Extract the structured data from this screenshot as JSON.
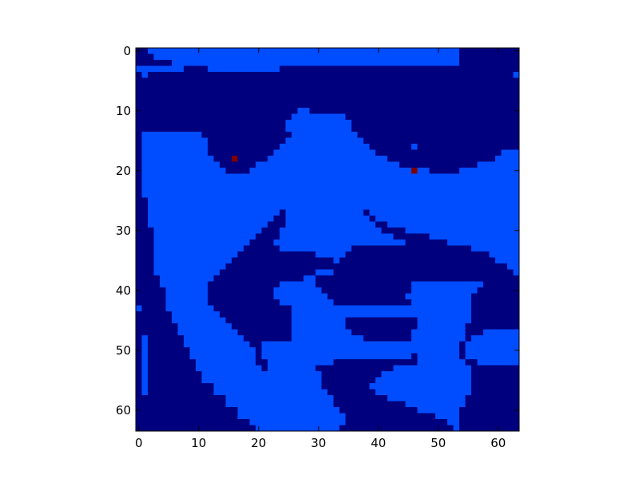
{
  "chart_data": {
    "type": "heatmap",
    "title": "",
    "xlabel": "",
    "ylabel": "",
    "xlim": [
      0,
      64
    ],
    "ylim": [
      64,
      0
    ],
    "grid": false,
    "legend": "none",
    "x_ticks": [
      0,
      10,
      20,
      30,
      40,
      50,
      60
    ],
    "y_ticks": [
      0,
      10,
      20,
      30,
      40,
      50,
      60
    ],
    "width": 64,
    "height": 64,
    "value_levels": [
      0,
      1,
      2
    ],
    "colors": {
      "0": "#00007f",
      "1": "#004cff",
      "2": "#7f0000",
      "axis": "#000000",
      "background": "#ffffff"
    },
    "regions": {
      "top_dark_band": {
        "rows": [
          0,
          1
        ],
        "value": 0
      },
      "left_dark_column": {
        "cols": [
          0,
          0
        ],
        "value": 0
      }
    },
    "hair_rows": [
      [
        0,
        1,
        54,
        64
      ],
      [
        1,
        1,
        47,
        64
      ],
      [
        2,
        4,
        40,
        64
      ],
      [
        3,
        2,
        36,
        64
      ],
      [
        4,
        1,
        34,
        64
      ],
      [
        5,
        2,
        32,
        64
      ],
      [
        6,
        3,
        30,
        64
      ],
      [
        7,
        4,
        28,
        64
      ],
      [
        8,
        5,
        27,
        64
      ],
      [
        9,
        5,
        24,
        64
      ],
      [
        10,
        4,
        26,
        64
      ],
      [
        11,
        4,
        27,
        64
      ],
      [
        12,
        4,
        28,
        64
      ],
      [
        13,
        4,
        27,
        64
      ]
    ],
    "brow_left": [
      [
        14,
        11,
        26
      ],
      [
        15,
        11,
        25
      ],
      [
        16,
        12,
        24
      ],
      [
        17,
        12,
        23
      ],
      [
        18,
        13,
        22
      ],
      [
        19,
        14,
        20
      ],
      [
        20,
        15,
        19
      ]
    ],
    "brow_right": [
      [
        13,
        36,
        64
      ],
      [
        14,
        37,
        64
      ],
      [
        15,
        38,
        64
      ],
      [
        16,
        39,
        64
      ],
      [
        17,
        40,
        61
      ],
      [
        18,
        42,
        60
      ],
      [
        19,
        44,
        57
      ],
      [
        20,
        49,
        54
      ]
    ],
    "nose_left": [
      [
        27,
        24,
        25
      ],
      [
        28,
        23,
        25
      ],
      [
        29,
        22,
        25
      ],
      [
        30,
        21,
        24
      ],
      [
        31,
        20,
        24
      ],
      [
        32,
        19,
        23
      ],
      [
        33,
        18,
        24
      ],
      [
        34,
        17,
        30
      ],
      [
        35,
        16,
        33
      ],
      [
        36,
        15,
        33
      ],
      [
        37,
        14,
        30
      ],
      [
        38,
        13,
        28
      ],
      [
        39,
        12,
        24
      ],
      [
        40,
        12,
        23
      ],
      [
        41,
        12,
        23
      ],
      [
        42,
        12,
        24
      ],
      [
        43,
        13,
        26
      ],
      [
        44,
        14,
        26
      ],
      [
        45,
        15,
        26
      ],
      [
        46,
        16,
        26
      ],
      [
        47,
        17,
        26
      ],
      [
        48,
        18,
        26
      ],
      [
        49,
        19,
        21
      ],
      [
        50,
        20,
        21
      ],
      [
        51,
        20,
        21
      ],
      [
        52,
        20,
        22
      ],
      [
        53,
        21,
        22
      ]
    ],
    "nose_right": [
      [
        27,
        38,
        39
      ],
      [
        28,
        39,
        40
      ],
      [
        29,
        40,
        42
      ],
      [
        30,
        41,
        45
      ],
      [
        31,
        43,
        49
      ],
      [
        32,
        45,
        52
      ],
      [
        33,
        36,
        56
      ],
      [
        34,
        35,
        59
      ],
      [
        35,
        34,
        60
      ],
      [
        36,
        33,
        62
      ],
      [
        37,
        33,
        63
      ],
      [
        38,
        33,
        64
      ]
    ],
    "mouth_upper": [
      [
        39,
        24,
        30
      ],
      [
        40,
        23,
        31
      ],
      [
        41,
        26,
        32
      ],
      [
        42,
        27,
        33
      ],
      [
        43,
        28,
        46
      ],
      [
        44,
        32,
        46
      ]
    ],
    "mouth_dark": [
      [
        38,
        30,
        46
      ],
      [
        39,
        30,
        46
      ],
      [
        40,
        31,
        46
      ],
      [
        41,
        32,
        45
      ],
      [
        42,
        33,
        46
      ],
      [
        45,
        26,
        47
      ],
      [
        46,
        26,
        47
      ],
      [
        47,
        27,
        46
      ],
      [
        48,
        29,
        46
      ],
      [
        49,
        30,
        45
      ],
      [
        50,
        31,
        44
      ],
      [
        51,
        32,
        47
      ],
      [
        52,
        33,
        47
      ],
      [
        53,
        30,
        43
      ],
      [
        54,
        31,
        41
      ],
      [
        55,
        31,
        40
      ],
      [
        56,
        31,
        39
      ],
      [
        57,
        32,
        40
      ],
      [
        58,
        33,
        42
      ],
      [
        59,
        33,
        45
      ],
      [
        60,
        34,
        47
      ],
      [
        61,
        35,
        50
      ],
      [
        62,
        35,
        52
      ],
      [
        63,
        34,
        53
      ]
    ],
    "teeth": [
      [
        45,
        26,
        35
      ],
      [
        46,
        26,
        35
      ],
      [
        47,
        27,
        36
      ],
      [
        48,
        29,
        38
      ],
      [
        49,
        29,
        45
      ],
      [
        50,
        30,
        46
      ],
      [
        51,
        31,
        46
      ]
    ],
    "chin_right": [
      [
        53,
        43,
        55
      ],
      [
        54,
        41,
        55
      ],
      [
        55,
        40,
        54
      ],
      [
        56,
        39,
        54
      ],
      [
        57,
        40,
        53
      ],
      [
        58,
        42,
        53
      ],
      [
        59,
        45,
        53
      ],
      [
        60,
        47,
        53
      ],
      [
        61,
        50,
        53
      ],
      [
        62,
        52,
        53
      ]
    ],
    "right_jaw_dark": [
      [
        39,
        58,
        64
      ],
      [
        40,
        57,
        64
      ],
      [
        41,
        56,
        64
      ],
      [
        42,
        56,
        64
      ],
      [
        43,
        56,
        64
      ],
      [
        44,
        56,
        64
      ],
      [
        45,
        56,
        64
      ],
      [
        46,
        55,
        64
      ],
      [
        47,
        55,
        60
      ],
      [
        48,
        55,
        58
      ],
      [
        49,
        54,
        57
      ],
      [
        50,
        54,
        56
      ],
      [
        51,
        54,
        56
      ],
      [
        52,
        55,
        57
      ],
      [
        53,
        56,
        64
      ],
      [
        54,
        56,
        64
      ],
      [
        55,
        56,
        64
      ],
      [
        56,
        56,
        64
      ],
      [
        57,
        56,
        64
      ],
      [
        58,
        55,
        64
      ],
      [
        59,
        55,
        64
      ],
      [
        60,
        54,
        64
      ],
      [
        61,
        54,
        64
      ],
      [
        62,
        54,
        64
      ],
      [
        63,
        54,
        64
      ]
    ],
    "left_face_edge": [
      [
        14,
        0,
        1
      ],
      [
        20,
        0,
        1
      ],
      [
        25,
        0,
        2
      ],
      [
        30,
        0,
        3
      ],
      [
        35,
        0,
        3
      ],
      [
        38,
        0,
        4
      ],
      [
        40,
        0,
        5
      ],
      [
        42,
        0,
        5
      ],
      [
        44,
        0,
        6
      ],
      [
        46,
        0,
        7
      ],
      [
        48,
        0,
        8
      ],
      [
        50,
        0,
        9
      ],
      [
        52,
        0,
        10
      ],
      [
        54,
        0,
        11
      ],
      [
        56,
        0,
        13
      ],
      [
        58,
        0,
        15
      ],
      [
        60,
        0,
        17
      ],
      [
        62,
        0,
        19
      ],
      [
        63,
        0,
        20
      ]
    ],
    "left_skin_spots": [
      [
        43,
        0
      ],
      [
        48,
        1
      ],
      [
        49,
        1
      ],
      [
        50,
        1
      ],
      [
        51,
        1
      ],
      [
        52,
        1
      ],
      [
        53,
        1
      ],
      [
        54,
        1
      ],
      [
        55,
        1
      ],
      [
        56,
        1
      ],
      [
        57,
        1
      ]
    ],
    "dark_specks": [
      [
        56,
        5
      ],
      [
        57,
        7
      ],
      [
        14,
        51
      ],
      [
        10,
        29
      ],
      [
        13,
        21
      ],
      [
        12,
        4
      ]
    ],
    "light_specks": [
      [
        4,
        63
      ],
      [
        48,
        63
      ],
      [
        15,
        11
      ],
      [
        16,
        46
      ],
      [
        53,
        53
      ]
    ],
    "red_points": [
      [
        16,
        18
      ],
      [
        46,
        20
      ]
    ]
  }
}
